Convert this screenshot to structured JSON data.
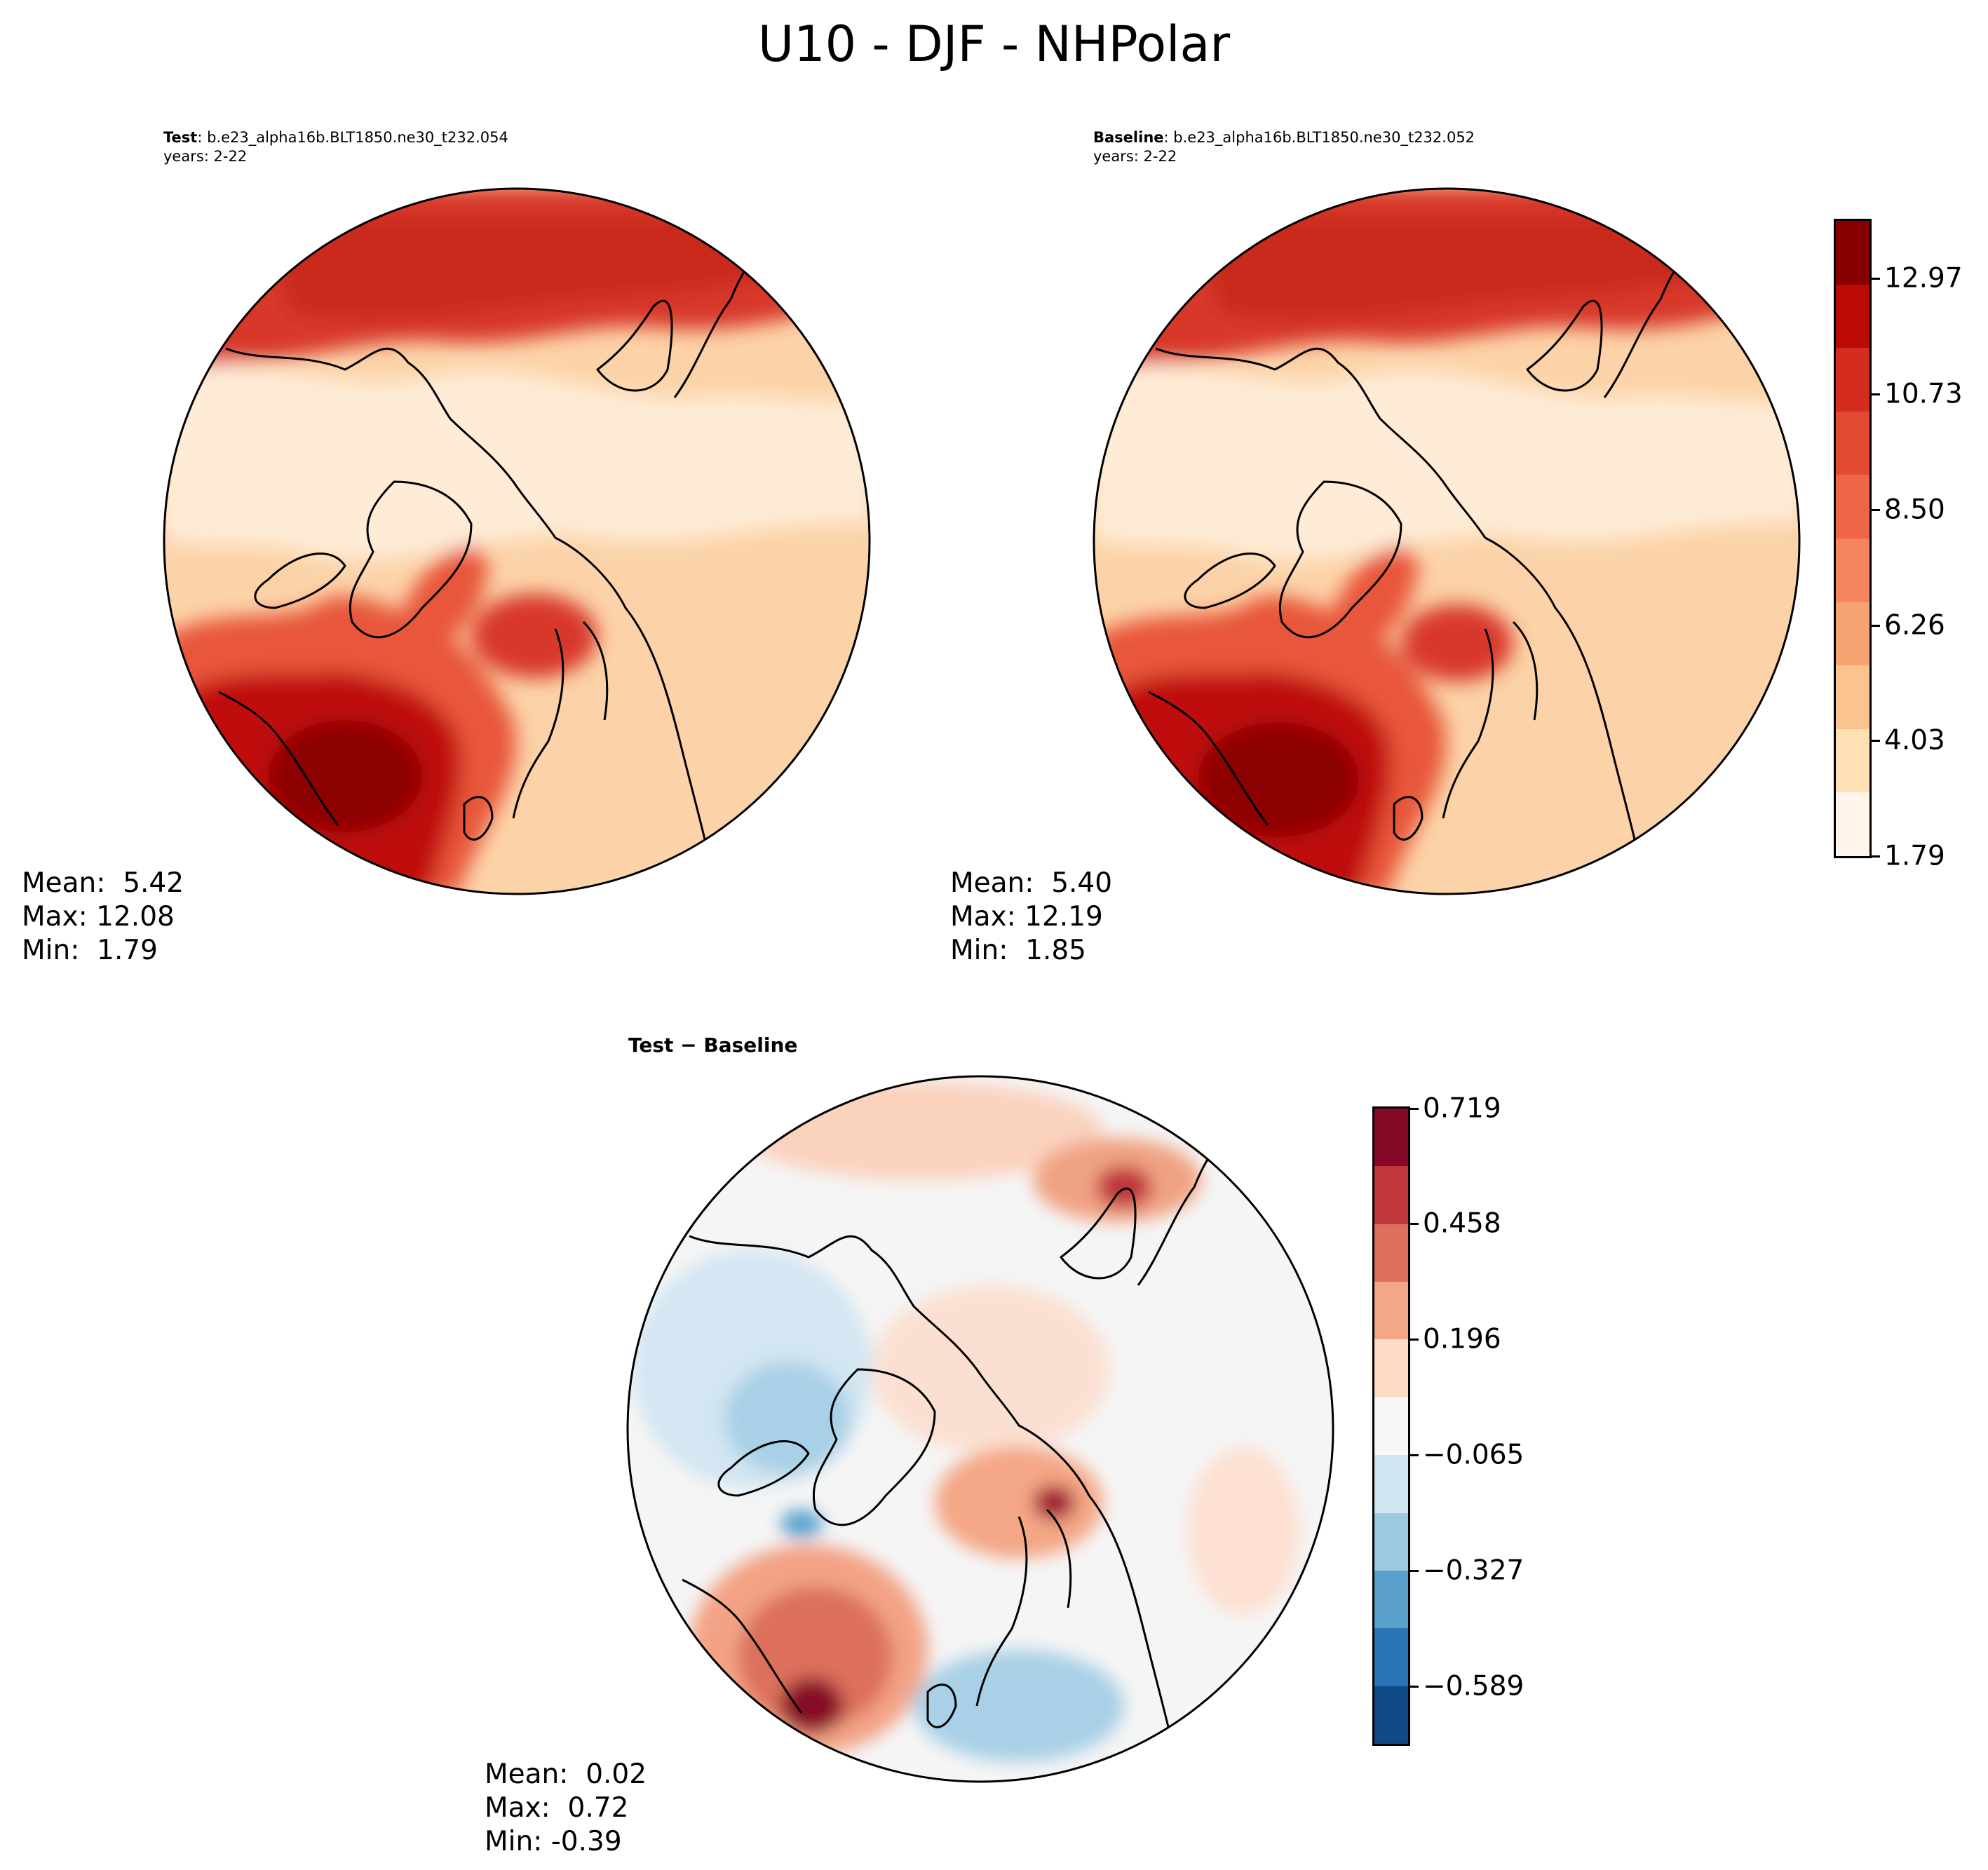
{
  "figure": {
    "title": "U10 - DJF - NHPolar"
  },
  "panels": {
    "test": {
      "label": "Test",
      "case": ": b.e23_alpha16b.BLT1850.ne30_t232.054",
      "years": "years: 2-22",
      "stats": {
        "mean": "Mean:  5.42",
        "max": "Max: 12.08",
        "min": "Min:  1.79"
      }
    },
    "baseline": {
      "label": "Baseline",
      "case": ": b.e23_alpha16b.BLT1850.ne30_t232.052",
      "years": "years: 2-22",
      "stats": {
        "mean": "Mean:  5.40",
        "max": "Max: 12.19",
        "min": "Min:  1.85"
      }
    },
    "diff": {
      "title": "Test − Baseline",
      "stats": {
        "mean": "Mean:  0.02",
        "max": "Max:  0.72",
        "min": "Min: -0.39"
      }
    }
  },
  "colorbars": {
    "main": {
      "tick_labels": [
        "12.97",
        "10.73",
        "8.50",
        "6.26",
        "4.03",
        "1.79"
      ],
      "tick_values": [
        12.97,
        10.73,
        8.5,
        6.26,
        4.03,
        1.79
      ],
      "range": [
        1.79,
        14.09
      ],
      "colors": [
        "#fff5eb",
        "#fee6ce",
        "#fdd0a2",
        "#fdae6b",
        "#fd8d3c",
        "#f16913",
        "#e95a3c",
        "#d42d20",
        "#bb0a04",
        "#870000"
      ],
      "colors_top_to_bottom": [
        "#870000",
        "#bb0a04",
        "#d42d20",
        "#e34a33",
        "#ef6548",
        "#f6845f",
        "#f8a374",
        "#fbc38f",
        "#fde0b4",
        "#fff5eb"
      ]
    },
    "diff": {
      "tick_labels": [
        "0.719",
        "0.458",
        "0.196",
        "−0.065",
        "−0.327",
        "−0.589"
      ],
      "tick_values": [
        0.719,
        0.458,
        0.196,
        -0.065,
        -0.327,
        -0.589
      ],
      "range": [
        -0.72,
        0.719
      ],
      "colors_top_to_bottom": [
        "#860a28",
        "#c0363b",
        "#dc6f5c",
        "#f4a786",
        "#fddbc7",
        "#f7f7f7",
        "#d1e5f0",
        "#9ecae1",
        "#5aa0cd",
        "#2b74b3",
        "#0f4a86"
      ]
    }
  }
}
